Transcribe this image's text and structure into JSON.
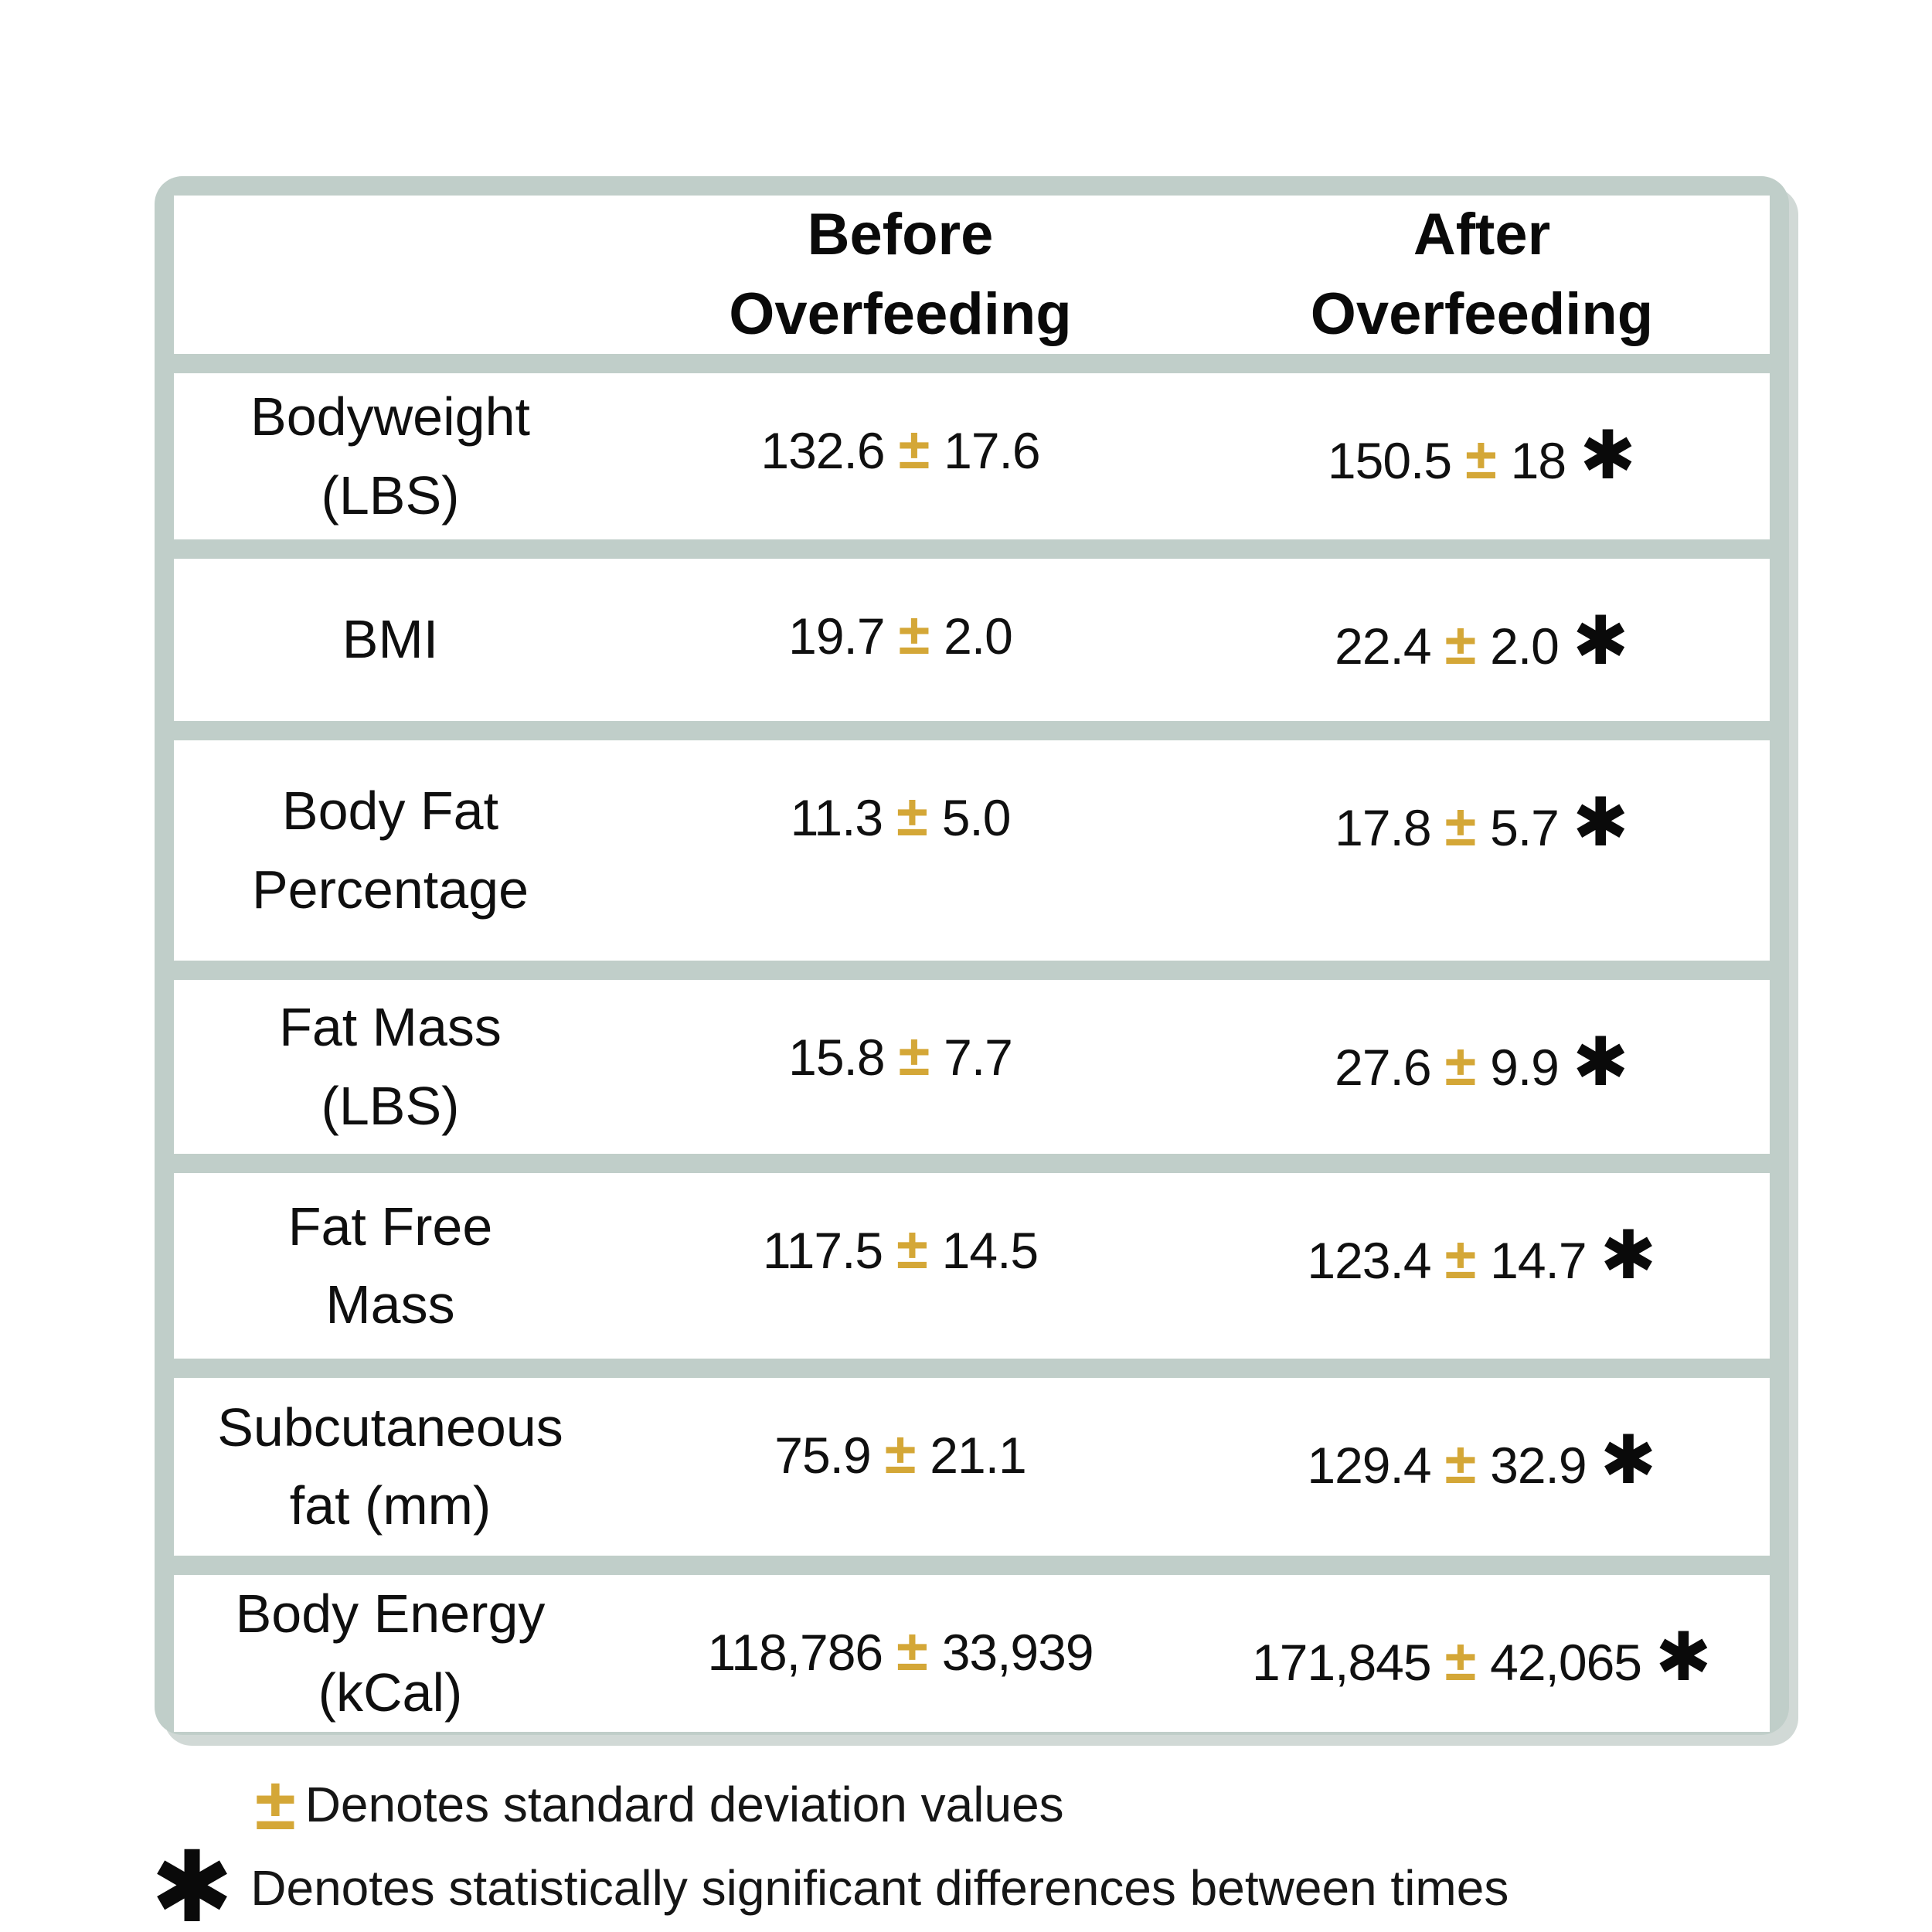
{
  "symbols": {
    "pm": "±",
    "star": "✱"
  },
  "colors": {
    "border": "#c0cec9",
    "gold_accent": "#d4a737",
    "text": "#111111",
    "background": "#ffffff"
  },
  "table": {
    "header": {
      "before": [
        "Before",
        "Overfeeding"
      ],
      "after": [
        "After",
        "Overfeeding"
      ]
    },
    "rows": [
      {
        "label": [
          "Bodyweight",
          "(LBS)"
        ],
        "before": {
          "value": "132.6",
          "sd": "17.6"
        },
        "after": {
          "value": "150.5",
          "sd": "18",
          "significant": true
        }
      },
      {
        "label": [
          "BMI",
          ""
        ],
        "before": {
          "value": "19.7",
          "sd": "2.0"
        },
        "after": {
          "value": "22.4",
          "sd": "2.0",
          "significant": true
        }
      },
      {
        "label": [
          "Body Fat",
          "Percentage"
        ],
        "before": {
          "value": "11.3",
          "sd": "5.0"
        },
        "after": {
          "value": "17.8",
          "sd": "5.7",
          "significant": true
        }
      },
      {
        "label": [
          "Fat Mass",
          "(LBS)"
        ],
        "before": {
          "value": "15.8",
          "sd": "7.7"
        },
        "after": {
          "value": "27.6",
          "sd": "9.9",
          "significant": true
        }
      },
      {
        "label": [
          "Fat Free",
          "Mass"
        ],
        "before": {
          "value": "117.5",
          "sd": "14.5"
        },
        "after": {
          "value": "123.4",
          "sd": "14.7",
          "significant": true
        }
      },
      {
        "label": [
          "Subcutaneous",
          "fat (mm)"
        ],
        "before": {
          "value": "75.9",
          "sd": "21.1"
        },
        "after": {
          "value": "129.4",
          "sd": "32.9",
          "significant": true
        }
      },
      {
        "label": [
          "Body Energy",
          "(kCal)"
        ],
        "before": {
          "value": "118,786",
          "sd": "33,939"
        },
        "after": {
          "value": "171,845",
          "sd": "42,065",
          "significant": true
        }
      }
    ]
  },
  "legend": [
    {
      "symbol": "±",
      "text": "Denotes standard deviation values"
    },
    {
      "symbol": "✱",
      "text": "Denotes statistically significant differences between times"
    }
  ],
  "chart_data": {
    "type": "table",
    "title": "",
    "columns": [
      "",
      "Before Overfeeding",
      "After Overfeeding"
    ],
    "rows": [
      {
        "metric": "Bodyweight (LBS)",
        "before_mean": 132.6,
        "before_sd": 17.6,
        "after_mean": 150.5,
        "after_sd": 18,
        "significant": true
      },
      {
        "metric": "BMI",
        "before_mean": 19.7,
        "before_sd": 2.0,
        "after_mean": 22.4,
        "after_sd": 2.0,
        "significant": true
      },
      {
        "metric": "Body Fat Percentage",
        "before_mean": 11.3,
        "before_sd": 5.0,
        "after_mean": 17.8,
        "after_sd": 5.7,
        "significant": true
      },
      {
        "metric": "Fat Mass (LBS)",
        "before_mean": 15.8,
        "before_sd": 7.7,
        "after_mean": 27.6,
        "after_sd": 9.9,
        "significant": true
      },
      {
        "metric": "Fat Free Mass",
        "before_mean": 117.5,
        "before_sd": 14.5,
        "after_mean": 123.4,
        "after_sd": 14.7,
        "significant": true
      },
      {
        "metric": "Subcutaneous fat (mm)",
        "before_mean": 75.9,
        "before_sd": 21.1,
        "after_mean": 129.4,
        "after_sd": 32.9,
        "significant": true
      },
      {
        "metric": "Body Energy (kCal)",
        "before_mean": 118786,
        "before_sd": 33939,
        "after_mean": 171845,
        "after_sd": 42065,
        "significant": true
      }
    ],
    "notes": [
      "± Denotes standard deviation values",
      "✱ Denotes statistically significant differences between times"
    ]
  }
}
